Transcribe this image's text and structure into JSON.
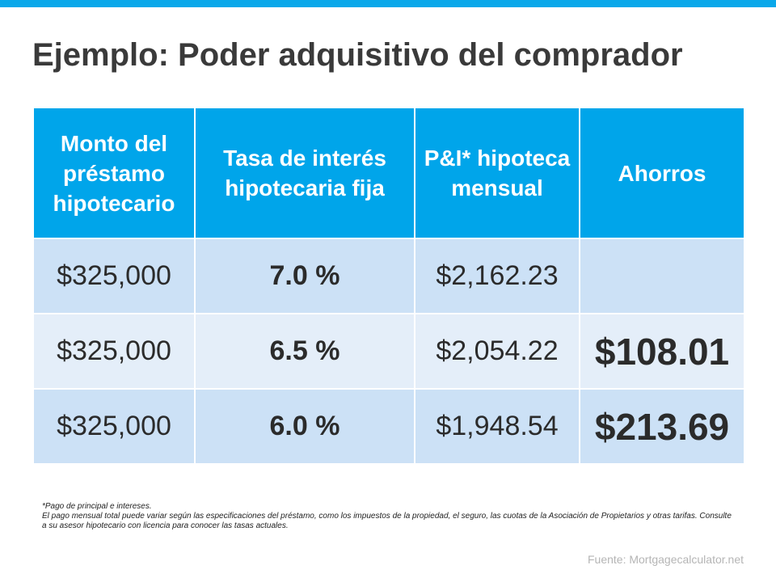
{
  "title": "Ejemplo: Poder adquisitivo del comprador",
  "table": {
    "headers": [
      "Monto del préstamo hipotecario",
      "Tasa de interés hipotecaria fija",
      "P&I* hipoteca mensual",
      "Ahorros"
    ],
    "rows": [
      {
        "loan": "$325,000",
        "rate": "7.0 %",
        "payment": "$2,162.23",
        "savings": ""
      },
      {
        "loan": "$325,000",
        "rate": "6.5 %",
        "payment": "$2,054.22",
        "savings": "$108.01"
      },
      {
        "loan": "$325,000",
        "rate": "6.0 %",
        "payment": "$1,948.54",
        "savings": "$213.69"
      }
    ]
  },
  "footnote": {
    "line1": "*Pago de principal e intereses.",
    "line2": "El pago mensual total puede variar según las especificaciones del préstamo, como los impuestos de la propiedad, el seguro, las cuotas de la Asociación de Propietarios y otras tarifas. Consulte a su asesor hipotecario con licencia para conocer las tasas actuales."
  },
  "source": "Fuente:  Mortgagecalculator.net",
  "colors": {
    "accent": "#0aa8ea",
    "header_bg": "#00a5ea",
    "row_dark": "#cce1f6",
    "row_light": "#e4eef9",
    "savings_green": "#4a9a3a"
  }
}
